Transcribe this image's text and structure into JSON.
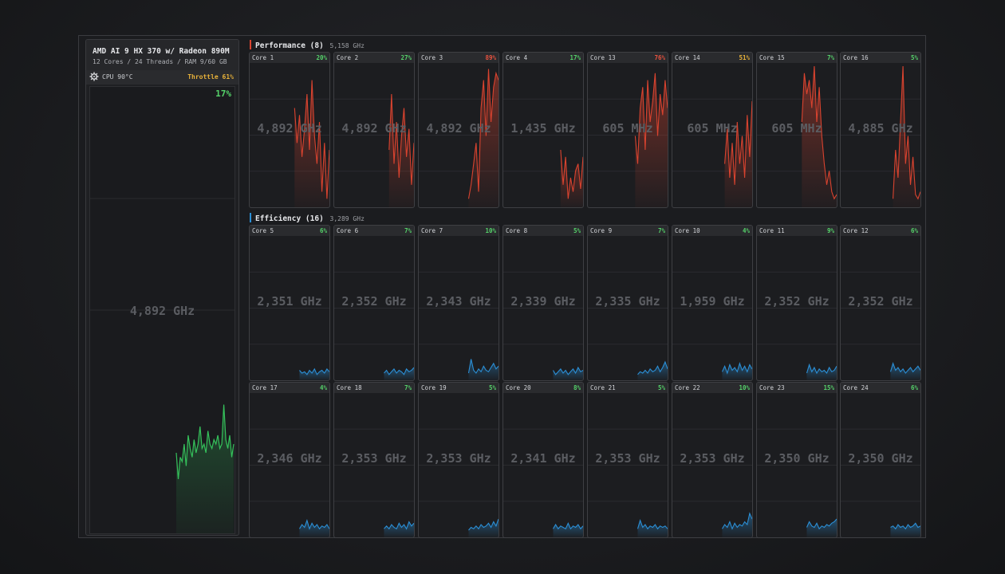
{
  "cpu": {
    "name": "AMD AI 9 HX 370 w/ Radeon 890M",
    "specs": "12 Cores / 24 Threads / RAM 9/60 GB",
    "temp": "CPU 90°C",
    "throttle": "Throttle 61%",
    "usage": "17%",
    "frequency": "4,892 GHz",
    "history": [
      0.18,
      0.12,
      0.17,
      0.16,
      0.2,
      0.15,
      0.22,
      0.19,
      0.17,
      0.21,
      0.18,
      0.2,
      0.24,
      0.19,
      0.2,
      0.18,
      0.23,
      0.2,
      0.19,
      0.21,
      0.2,
      0.22,
      0.19,
      0.2,
      0.29,
      0.21,
      0.19,
      0.22,
      0.17,
      0.2
    ]
  },
  "colors": {
    "accent_green": "#55d26a",
    "perf_line": "#d9432f",
    "eff_line": "#2b8fd6",
    "throttle": "#e8b23a",
    "usage_red": "#e8523f",
    "usage_yellow": "#e8b23a"
  },
  "groups": [
    {
      "title": "Performance (8)",
      "freq": "5,158 GHz",
      "kind": "performance",
      "cores": [
        {
          "name": "Core 1",
          "usage": "20%",
          "freq": "4,892 GHz",
          "history": [
            0,
            0,
            0,
            0,
            0,
            0,
            0,
            0,
            0,
            0,
            0,
            0,
            0,
            0,
            0,
            0,
            0,
            0,
            0.7,
            0.45,
            0.65,
            0.35,
            0.55,
            0.8,
            0.4,
            0.9,
            0.5,
            0.3,
            0.6,
            0.1,
            0.45,
            0.05,
            0.4
          ]
        },
        {
          "name": "Core 2",
          "usage": "27%",
          "freq": "4,892 GHz",
          "history": [
            0,
            0,
            0,
            0,
            0,
            0,
            0,
            0,
            0,
            0,
            0,
            0,
            0,
            0,
            0,
            0,
            0,
            0,
            0,
            0,
            0,
            0,
            0.4,
            0.8,
            0.3,
            0.6,
            0.2,
            0.5,
            0.7,
            0.35,
            0.55,
            0.15,
            0.45
          ]
        },
        {
          "name": "Core 3",
          "usage": "89%",
          "freq": "4,892 GHz",
          "history": [
            0,
            0,
            0,
            0,
            0,
            0,
            0,
            0,
            0,
            0,
            0,
            0,
            0,
            0,
            0,
            0,
            0,
            0,
            0,
            0,
            0.05,
            0.15,
            0.3,
            0.45,
            0.1,
            0.7,
            0.9,
            0.5,
            0.98,
            0.6,
            0.85,
            0.95,
            0.9
          ]
        },
        {
          "name": "Core 4",
          "usage": "17%",
          "freq": "1,435 GHz",
          "history": [
            0,
            0,
            0,
            0,
            0,
            0,
            0,
            0,
            0,
            0,
            0,
            0,
            0,
            0,
            0,
            0,
            0,
            0,
            0,
            0,
            0,
            0,
            0,
            0.4,
            0.15,
            0.35,
            0.05,
            0.2,
            0.1,
            0.25,
            0.3,
            0.12,
            0.35
          ]
        },
        {
          "name": "Core 13",
          "usage": "76%",
          "freq": "605 MHz",
          "history": [
            0,
            0,
            0,
            0,
            0,
            0,
            0,
            0,
            0,
            0,
            0,
            0,
            0,
            0,
            0,
            0,
            0,
            0,
            0,
            0.5,
            0.3,
            0.7,
            0.85,
            0.4,
            0.9,
            0.6,
            0.75,
            0.95,
            0.5,
            0.8,
            0.65,
            0.9,
            0.7
          ]
        },
        {
          "name": "Core 14",
          "usage": "51%",
          "freq": "605 MHz",
          "history": [
            0,
            0,
            0,
            0,
            0,
            0,
            0,
            0,
            0,
            0,
            0,
            0,
            0,
            0,
            0,
            0,
            0,
            0,
            0,
            0,
            0,
            0.3,
            0.55,
            0.2,
            0.45,
            0.15,
            0.6,
            0.3,
            0.5,
            0.2,
            0.65,
            0.35,
            0.75
          ]
        },
        {
          "name": "Core 15",
          "usage": "7%",
          "freq": "605 MHz",
          "history": [
            0,
            0,
            0,
            0,
            0,
            0,
            0,
            0,
            0,
            0,
            0,
            0,
            0,
            0,
            0,
            0,
            0,
            0,
            0.6,
            0.95,
            0.8,
            0.9,
            0.7,
            1.0,
            0.6,
            0.85,
            0.5,
            0.3,
            0.15,
            0.25,
            0.1,
            0.05,
            0.08
          ]
        },
        {
          "name": "Core 16",
          "usage": "5%",
          "freq": "4,885 GHz",
          "history": [
            0,
            0,
            0,
            0,
            0,
            0,
            0,
            0,
            0,
            0,
            0,
            0,
            0,
            0,
            0,
            0,
            0,
            0,
            0,
            0,
            0,
            0.05,
            0.4,
            0.2,
            0.6,
            1.0,
            0.3,
            0.5,
            0.15,
            0.35,
            0.08,
            0.05,
            0.1
          ]
        }
      ]
    },
    {
      "title": "Efficiency (16)",
      "freq": "3,289 GHz",
      "kind": "efficiency",
      "cores": [
        {
          "name": "Core 5",
          "usage": "6%",
          "freq": "2,351 GHz",
          "history": [
            0,
            0,
            0,
            0,
            0,
            0,
            0,
            0,
            0,
            0,
            0,
            0,
            0,
            0,
            0,
            0,
            0,
            0,
            0,
            0,
            0.06,
            0.04,
            0.05,
            0.03,
            0.06,
            0.04,
            0.07,
            0.03,
            0.05,
            0.06,
            0.04,
            0.07,
            0.05
          ]
        },
        {
          "name": "Core 6",
          "usage": "7%",
          "freq": "2,352 GHz",
          "history": [
            0,
            0,
            0,
            0,
            0,
            0,
            0,
            0,
            0,
            0,
            0,
            0,
            0,
            0,
            0,
            0,
            0,
            0,
            0,
            0,
            0.04,
            0.06,
            0.03,
            0.05,
            0.07,
            0.04,
            0.06,
            0.05,
            0.03,
            0.07,
            0.05,
            0.06,
            0.08
          ]
        },
        {
          "name": "Core 7",
          "usage": "10%",
          "freq": "2,343 GHz",
          "history": [
            0,
            0,
            0,
            0,
            0,
            0,
            0,
            0,
            0,
            0,
            0,
            0,
            0,
            0,
            0,
            0,
            0,
            0,
            0,
            0,
            0.04,
            0.14,
            0.06,
            0.04,
            0.07,
            0.05,
            0.09,
            0.06,
            0.05,
            0.08,
            0.11,
            0.07,
            0.09
          ]
        },
        {
          "name": "Core 8",
          "usage": "5%",
          "freq": "2,339 GHz",
          "history": [
            0,
            0,
            0,
            0,
            0,
            0,
            0,
            0,
            0,
            0,
            0,
            0,
            0,
            0,
            0,
            0,
            0,
            0,
            0,
            0,
            0.06,
            0.03,
            0.05,
            0.07,
            0.04,
            0.06,
            0.03,
            0.05,
            0.07,
            0.04,
            0.08,
            0.05,
            0.06
          ]
        },
        {
          "name": "Core 9",
          "usage": "7%",
          "freq": "2,335 GHz",
          "history": [
            0,
            0,
            0,
            0,
            0,
            0,
            0,
            0,
            0,
            0,
            0,
            0,
            0,
            0,
            0,
            0,
            0,
            0,
            0,
            0,
            0.03,
            0.05,
            0.04,
            0.06,
            0.04,
            0.07,
            0.05,
            0.06,
            0.09,
            0.05,
            0.08,
            0.12,
            0.07
          ]
        },
        {
          "name": "Core 10",
          "usage": "4%",
          "freq": "1,959 GHz",
          "history": [
            0,
            0,
            0,
            0,
            0,
            0,
            0,
            0,
            0,
            0,
            0,
            0,
            0,
            0,
            0,
            0,
            0,
            0,
            0,
            0,
            0.05,
            0.09,
            0.04,
            0.1,
            0.06,
            0.08,
            0.05,
            0.11,
            0.06,
            0.09,
            0.05,
            0.1,
            0.07
          ]
        },
        {
          "name": "Core 11",
          "usage": "9%",
          "freq": "2,352 GHz",
          "history": [
            0,
            0,
            0,
            0,
            0,
            0,
            0,
            0,
            0,
            0,
            0,
            0,
            0,
            0,
            0,
            0,
            0,
            0,
            0,
            0,
            0.04,
            0.1,
            0.05,
            0.08,
            0.04,
            0.07,
            0.05,
            0.06,
            0.04,
            0.08,
            0.05,
            0.06,
            0.09
          ]
        },
        {
          "name": "Core 12",
          "usage": "6%",
          "freq": "2,352 GHz",
          "history": [
            0,
            0,
            0,
            0,
            0,
            0,
            0,
            0,
            0,
            0,
            0,
            0,
            0,
            0,
            0,
            0,
            0,
            0,
            0,
            0,
            0.05,
            0.11,
            0.06,
            0.08,
            0.05,
            0.07,
            0.04,
            0.06,
            0.08,
            0.05,
            0.07,
            0.09,
            0.06
          ]
        },
        {
          "name": "Core 17",
          "usage": "4%",
          "freq": "2,346 GHz",
          "history": [
            0,
            0,
            0,
            0,
            0,
            0,
            0,
            0,
            0,
            0,
            0,
            0,
            0,
            0,
            0,
            0,
            0,
            0,
            0,
            0,
            0.05,
            0.08,
            0.06,
            0.11,
            0.05,
            0.09,
            0.06,
            0.08,
            0.05,
            0.07,
            0.06,
            0.08,
            0.05
          ]
        },
        {
          "name": "Core 18",
          "usage": "7%",
          "freq": "2,353 GHz",
          "history": [
            0,
            0,
            0,
            0,
            0,
            0,
            0,
            0,
            0,
            0,
            0,
            0,
            0,
            0,
            0,
            0,
            0,
            0,
            0,
            0,
            0.05,
            0.07,
            0.05,
            0.08,
            0.06,
            0.05,
            0.09,
            0.06,
            0.08,
            0.05,
            0.1,
            0.07,
            0.09
          ]
        },
        {
          "name": "Core 19",
          "usage": "5%",
          "freq": "2,353 GHz",
          "history": [
            0,
            0,
            0,
            0,
            0,
            0,
            0,
            0,
            0,
            0,
            0,
            0,
            0,
            0,
            0,
            0,
            0,
            0,
            0,
            0,
            0.04,
            0.06,
            0.05,
            0.07,
            0.05,
            0.08,
            0.06,
            0.07,
            0.09,
            0.06,
            0.1,
            0.07,
            0.12
          ]
        },
        {
          "name": "Core 20",
          "usage": "8%",
          "freq": "2,341 GHz",
          "history": [
            0,
            0,
            0,
            0,
            0,
            0,
            0,
            0,
            0,
            0,
            0,
            0,
            0,
            0,
            0,
            0,
            0,
            0,
            0,
            0,
            0.05,
            0.08,
            0.05,
            0.07,
            0.06,
            0.05,
            0.09,
            0.05,
            0.07,
            0.06,
            0.08,
            0.05,
            0.07
          ]
        },
        {
          "name": "Core 21",
          "usage": "5%",
          "freq": "2,353 GHz",
          "history": [
            0,
            0,
            0,
            0,
            0,
            0,
            0,
            0,
            0,
            0,
            0,
            0,
            0,
            0,
            0,
            0,
            0,
            0,
            0,
            0,
            0.05,
            0.11,
            0.06,
            0.08,
            0.05,
            0.07,
            0.06,
            0.08,
            0.05,
            0.07,
            0.06,
            0.07,
            0.05
          ]
        },
        {
          "name": "Core 22",
          "usage": "10%",
          "freq": "2,353 GHz",
          "history": [
            0,
            0,
            0,
            0,
            0,
            0,
            0,
            0,
            0,
            0,
            0,
            0,
            0,
            0,
            0,
            0,
            0,
            0,
            0,
            0,
            0.05,
            0.08,
            0.06,
            0.1,
            0.05,
            0.09,
            0.06,
            0.08,
            0.07,
            0.1,
            0.08,
            0.16,
            0.12
          ]
        },
        {
          "name": "Core 23",
          "usage": "15%",
          "freq": "2,350 GHz",
          "history": [
            0,
            0,
            0,
            0,
            0,
            0,
            0,
            0,
            0,
            0,
            0,
            0,
            0,
            0,
            0,
            0,
            0,
            0,
            0,
            0,
            0.06,
            0.1,
            0.07,
            0.06,
            0.09,
            0.05,
            0.07,
            0.06,
            0.08,
            0.07,
            0.09,
            0.1,
            0.12
          ]
        },
        {
          "name": "Core 24",
          "usage": "6%",
          "freq": "2,350 GHz",
          "history": [
            0,
            0,
            0,
            0,
            0,
            0,
            0,
            0,
            0,
            0,
            0,
            0,
            0,
            0,
            0,
            0,
            0,
            0,
            0,
            0,
            0.06,
            0.07,
            0.05,
            0.08,
            0.06,
            0.07,
            0.05,
            0.08,
            0.06,
            0.07,
            0.09,
            0.06,
            0.07
          ]
        }
      ]
    }
  ]
}
